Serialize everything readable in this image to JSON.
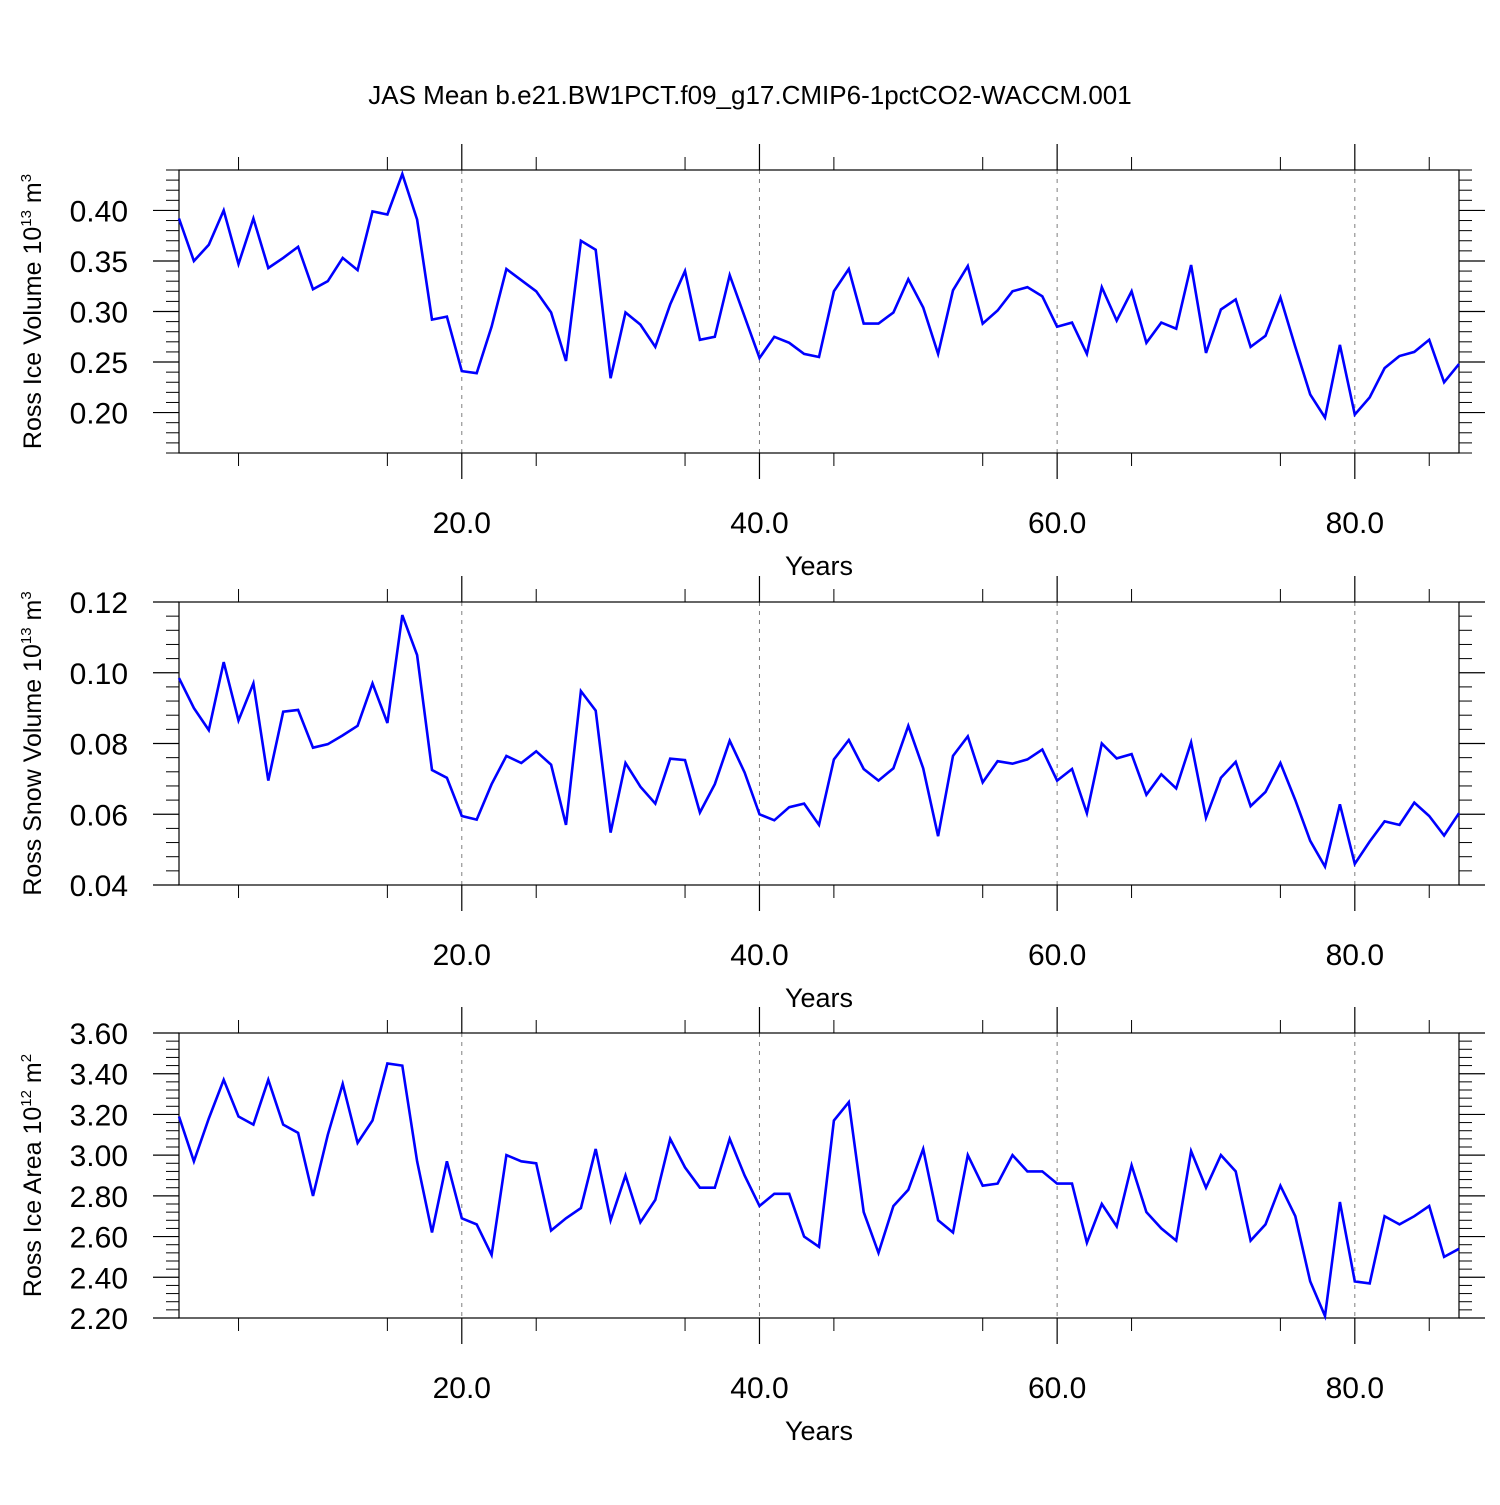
{
  "title": "JAS Mean b.e21.BW1PCT.f09_g17.CMIP6-1pctCO2-WACCM.001",
  "line_color": "#0000ff",
  "chart_data": [
    {
      "type": "line",
      "ylabel": {
        "prefix": "Ross Ice Volume 10",
        "exp": "13",
        "unit": " m",
        "unit_exp": "3"
      },
      "xlabel": "Years",
      "xlim": [
        1,
        87
      ],
      "ylim": [
        0.16,
        0.44
      ],
      "xticks": [
        20,
        40,
        60,
        80
      ],
      "xtick_labels": [
        "20.0",
        "40.0",
        "60.0",
        "80.0"
      ],
      "yticks": [
        0.2,
        0.25,
        0.3,
        0.35,
        0.4
      ],
      "ytick_labels": [
        "0.20",
        "0.25",
        "0.30",
        "0.35",
        "0.40"
      ],
      "grid": "dashed vertical at x ticks",
      "series": [
        {
          "x": [
            1,
            2,
            3,
            4,
            5,
            6,
            7,
            8,
            9,
            10,
            11,
            12,
            13,
            14,
            15,
            16,
            17,
            18,
            19,
            20,
            21,
            22,
            23,
            24,
            25,
            26,
            27,
            28,
            29,
            30,
            31,
            32,
            33,
            34,
            35,
            36,
            37,
            38,
            39,
            40,
            41,
            42,
            43,
            44,
            45,
            46,
            47,
            48,
            49,
            50,
            51,
            52,
            53,
            54,
            55,
            56,
            57,
            58,
            59,
            60,
            61,
            62,
            63,
            64,
            65,
            66,
            67,
            68,
            69,
            70,
            71,
            72,
            73,
            74,
            75,
            76,
            77,
            78,
            79,
            80,
            81,
            82,
            83,
            84,
            85,
            86,
            87
          ],
          "values": [
            0.392,
            0.35,
            0.366,
            0.4,
            0.347,
            0.392,
            0.343,
            0.353,
            0.364,
            0.322,
            0.33,
            0.353,
            0.341,
            0.399,
            0.396,
            0.436,
            0.391,
            0.292,
            0.295,
            0.241,
            0.239,
            0.285,
            0.342,
            0.331,
            0.32,
            0.299,
            0.251,
            0.37,
            0.361,
            0.234,
            0.299,
            0.287,
            0.265,
            0.307,
            0.34,
            0.272,
            0.275,
            0.336,
            0.295,
            0.254,
            0.275,
            0.269,
            0.258,
            0.255,
            0.32,
            0.342,
            0.288,
            0.288,
            0.299,
            0.332,
            0.304,
            0.258,
            0.321,
            0.345,
            0.288,
            0.301,
            0.32,
            0.324,
            0.315,
            0.285,
            0.289,
            0.258,
            0.324,
            0.291,
            0.32,
            0.269,
            0.289,
            0.283,
            0.346,
            0.259,
            0.302,
            0.312,
            0.265,
            0.276,
            0.314,
            0.265,
            0.218,
            0.195,
            0.267,
            0.198,
            0.215,
            0.244,
            0.256,
            0.26,
            0.272,
            0.23,
            0.248
          ]
        }
      ]
    },
    {
      "type": "line",
      "ylabel": {
        "prefix": "Ross Snow Volume 10",
        "exp": "13",
        "unit": " m",
        "unit_exp": "3"
      },
      "xlabel": "Years",
      "xlim": [
        1,
        87
      ],
      "ylim": [
        0.04,
        0.12
      ],
      "xticks": [
        20,
        40,
        60,
        80
      ],
      "xtick_labels": [
        "20.0",
        "40.0",
        "60.0",
        "80.0"
      ],
      "yticks": [
        0.04,
        0.06,
        0.08,
        0.1,
        0.12
      ],
      "ytick_labels": [
        "0.04",
        "0.06",
        "0.08",
        "0.10",
        "0.12"
      ],
      "grid": "dashed vertical at x ticks",
      "series": [
        {
          "x": [
            1,
            2,
            3,
            4,
            5,
            6,
            7,
            8,
            9,
            10,
            11,
            12,
            13,
            14,
            15,
            16,
            17,
            18,
            19,
            20,
            21,
            22,
            23,
            24,
            25,
            26,
            27,
            28,
            29,
            30,
            31,
            32,
            33,
            34,
            35,
            36,
            37,
            38,
            39,
            40,
            41,
            42,
            43,
            44,
            45,
            46,
            47,
            48,
            49,
            50,
            51,
            52,
            53,
            54,
            55,
            56,
            57,
            58,
            59,
            60,
            61,
            62,
            63,
            64,
            65,
            66,
            67,
            68,
            69,
            70,
            71,
            72,
            73,
            74,
            75,
            76,
            77,
            78,
            79,
            80,
            81,
            82,
            83,
            84,
            85,
            86,
            87
          ],
          "values": [
            0.0985,
            0.09,
            0.0838,
            0.103,
            0.0865,
            0.097,
            0.0695,
            0.089,
            0.0895,
            0.0788,
            0.0798,
            0.0823,
            0.085,
            0.097,
            0.0858,
            0.1163,
            0.105,
            0.0725,
            0.0703,
            0.0595,
            0.0585,
            0.0685,
            0.0765,
            0.0745,
            0.0778,
            0.074,
            0.057,
            0.0948,
            0.0893,
            0.0548,
            0.0745,
            0.0678,
            0.063,
            0.0757,
            0.0753,
            0.0605,
            0.0685,
            0.0808,
            0.0718,
            0.06,
            0.0583,
            0.062,
            0.063,
            0.057,
            0.0755,
            0.081,
            0.0728,
            0.0695,
            0.073,
            0.085,
            0.073,
            0.0538,
            0.0765,
            0.082,
            0.069,
            0.075,
            0.0743,
            0.0755,
            0.0783,
            0.0695,
            0.0728,
            0.0603,
            0.08,
            0.0758,
            0.077,
            0.0655,
            0.0713,
            0.0673,
            0.0803,
            0.059,
            0.0703,
            0.0748,
            0.0623,
            0.0663,
            0.0745,
            0.064,
            0.0525,
            0.0452,
            0.0628,
            0.046,
            0.0523,
            0.058,
            0.057,
            0.0633,
            0.0595,
            0.054,
            0.0603
          ]
        }
      ]
    },
    {
      "type": "line",
      "ylabel": {
        "prefix": "Ross Ice Area 10",
        "exp": "12",
        "unit": " m",
        "unit_exp": "2"
      },
      "xlabel": "Years",
      "xlim": [
        1,
        87
      ],
      "ylim": [
        2.2,
        3.6
      ],
      "xticks": [
        20,
        40,
        60,
        80
      ],
      "xtick_labels": [
        "20.0",
        "40.0",
        "60.0",
        "80.0"
      ],
      "yticks": [
        2.2,
        2.4,
        2.6,
        2.8,
        3.0,
        3.2,
        3.4,
        3.6
      ],
      "ytick_labels": [
        "2.20",
        "2.40",
        "2.60",
        "2.80",
        "3.00",
        "3.20",
        "3.40",
        "3.60"
      ],
      "grid": "dashed vertical at x ticks",
      "series": [
        {
          "x": [
            1,
            2,
            3,
            4,
            5,
            6,
            7,
            8,
            9,
            10,
            11,
            12,
            13,
            14,
            15,
            16,
            17,
            18,
            19,
            20,
            21,
            22,
            23,
            24,
            25,
            26,
            27,
            28,
            29,
            30,
            31,
            32,
            33,
            34,
            35,
            36,
            37,
            38,
            39,
            40,
            41,
            42,
            43,
            44,
            45,
            46,
            47,
            48,
            49,
            50,
            51,
            52,
            53,
            54,
            55,
            56,
            57,
            58,
            59,
            60,
            61,
            62,
            63,
            64,
            65,
            66,
            67,
            68,
            69,
            70,
            71,
            72,
            73,
            74,
            75,
            76,
            77,
            78,
            79,
            80,
            81,
            82,
            83,
            84,
            85,
            86,
            87
          ],
          "values": [
            3.19,
            2.97,
            3.18,
            3.37,
            3.19,
            3.15,
            3.37,
            3.15,
            3.11,
            2.8,
            3.1,
            3.35,
            3.06,
            3.17,
            3.45,
            3.44,
            2.97,
            2.62,
            2.97,
            2.69,
            2.66,
            2.51,
            3.0,
            2.97,
            2.96,
            2.63,
            2.69,
            2.74,
            3.03,
            2.68,
            2.9,
            2.67,
            2.78,
            3.08,
            2.94,
            2.84,
            2.84,
            3.08,
            2.9,
            2.75,
            2.81,
            2.81,
            2.6,
            2.55,
            3.17,
            3.26,
            2.72,
            2.52,
            2.75,
            2.83,
            3.03,
            2.68,
            2.62,
            3.0,
            2.85,
            2.86,
            3.0,
            2.92,
            2.92,
            2.86,
            2.86,
            2.57,
            2.76,
            2.65,
            2.95,
            2.72,
            2.64,
            2.58,
            3.02,
            2.84,
            3.0,
            2.92,
            2.58,
            2.66,
            2.85,
            2.7,
            2.38,
            2.21,
            2.77,
            2.38,
            2.37,
            2.7,
            2.66,
            2.7,
            2.75,
            2.5,
            2.54
          ]
        }
      ]
    }
  ]
}
